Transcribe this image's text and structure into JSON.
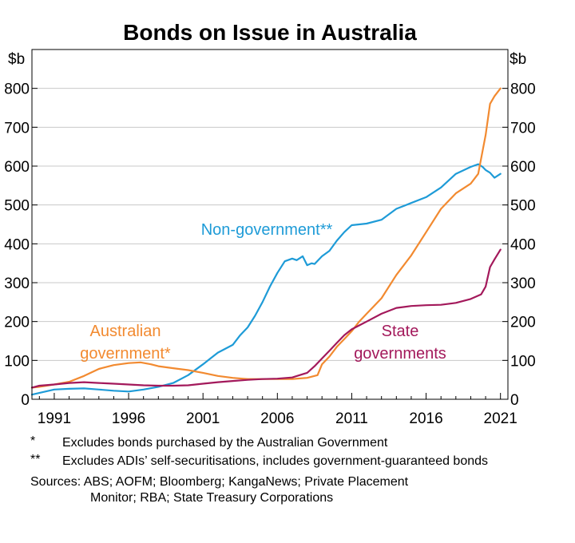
{
  "chart_data": {
    "type": "line",
    "title": "Bonds on Issue in Australia",
    "unit_left": "$b",
    "unit_right": "$b",
    "ylim": [
      0,
      900
    ],
    "yticks": [
      0,
      100,
      200,
      300,
      400,
      500,
      600,
      700,
      800
    ],
    "xlim": [
      1989.5,
      2021.5
    ],
    "xticks": [
      1991,
      1996,
      2001,
      2006,
      2011,
      2016,
      2021
    ],
    "grid": true,
    "series": [
      {
        "name": "Non-government**",
        "color": "#1e9bd7",
        "x": [
          1989.5,
          1990.2,
          1991,
          1992,
          1993,
          1994,
          1995,
          1996,
          1997,
          1998,
          1999,
          2000,
          2001,
          2001.5,
          2002,
          2003,
          2003.5,
          2004,
          2004.5,
          2005,
          2005.5,
          2006,
          2006.5,
          2007,
          2007.3,
          2007.7,
          2008,
          2008.3,
          2008.5,
          2009,
          2009.5,
          2010,
          2010.5,
          2011,
          2012,
          2013,
          2014,
          2015,
          2016,
          2017,
          2018,
          2019,
          2019.5,
          2019.8,
          2020,
          2020.3,
          2020.6,
          2021
        ],
        "values": [
          12,
          18,
          25,
          27,
          28,
          25,
          22,
          20,
          25,
          32,
          42,
          62,
          90,
          105,
          120,
          140,
          165,
          185,
          215,
          250,
          290,
          325,
          355,
          362,
          358,
          368,
          345,
          350,
          348,
          368,
          382,
          408,
          430,
          448,
          452,
          462,
          490,
          505,
          520,
          545,
          580,
          598,
          605,
          598,
          590,
          583,
          570,
          580
        ]
      },
      {
        "name": "Australian government*",
        "color": "#f28a30",
        "x": [
          1989.5,
          1990,
          1991,
          1992,
          1993,
          1994,
          1995,
          1996,
          1996.8,
          1997.5,
          1998,
          1999,
          2000,
          2001,
          2002,
          2003,
          2004,
          2005,
          2006,
          2007,
          2008,
          2008.7,
          2009,
          2009.5,
          2010,
          2010.5,
          2011,
          2011.5,
          2012,
          2013,
          2014,
          2015,
          2016,
          2017,
          2018,
          2019,
          2019.5,
          2020,
          2020.3,
          2020.6,
          2021
        ],
        "values": [
          30,
          32,
          38,
          45,
          60,
          78,
          88,
          93,
          95,
          90,
          85,
          80,
          75,
          68,
          60,
          55,
          52,
          52,
          52,
          52,
          55,
          62,
          90,
          110,
          135,
          155,
          175,
          200,
          220,
          260,
          320,
          370,
          430,
          490,
          530,
          555,
          580,
          680,
          760,
          780,
          800
        ]
      },
      {
        "name": "State governments",
        "color": "#a3195b",
        "x": [
          1989.5,
          1990,
          1991,
          1992,
          1993,
          1994,
          1995,
          1996,
          1997,
          1998,
          1999,
          2000,
          2001,
          2002,
          2003,
          2004,
          2005,
          2006,
          2007,
          2008,
          2008.5,
          2009,
          2009.5,
          2010,
          2010.5,
          2011,
          2011.5,
          2012,
          2013,
          2014,
          2015,
          2016,
          2017,
          2018,
          2019,
          2019.7,
          2020,
          2020.3,
          2020.6,
          2021
        ],
        "values": [
          30,
          35,
          38,
          42,
          44,
          42,
          40,
          38,
          36,
          35,
          35,
          36,
          40,
          44,
          47,
          50,
          52,
          53,
          56,
          68,
          85,
          105,
          125,
          145,
          165,
          180,
          190,
          200,
          220,
          235,
          240,
          242,
          243,
          248,
          258,
          270,
          290,
          340,
          360,
          385
        ]
      }
    ],
    "annotations": [
      {
        "series": "Non-government**",
        "lines": [
          "Non-government**"
        ]
      },
      {
        "series": "Australian government*",
        "lines": [
          "Australian",
          "government*"
        ]
      },
      {
        "series": "State governments",
        "lines": [
          "State",
          "governments"
        ]
      }
    ]
  },
  "footnotes": [
    {
      "mark": "*",
      "text": "Excludes bonds purchased by the Australian Government"
    },
    {
      "mark": "**",
      "text": "Excludes ADIs’ self-securitisations, includes government-guaranteed bonds"
    }
  ],
  "sources": {
    "line1": "Sources: ABS; AOFM; Bloomberg; KangaNews; Private Placement",
    "line2": "Monitor; RBA; State Treasury Corporations"
  }
}
